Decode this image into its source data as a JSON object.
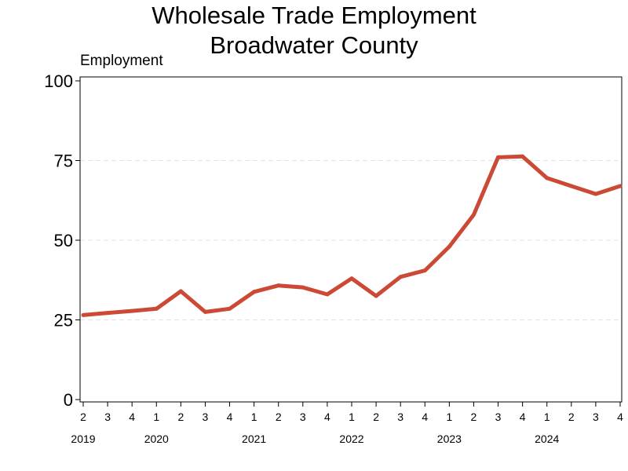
{
  "chart_data": {
    "type": "line",
    "title": "Wholesale Trade Employment",
    "subtitle": "Broadwater County",
    "ylabel": "Employment",
    "xlabel": "",
    "ylim": [
      0,
      100
    ],
    "yticks": [
      "0",
      "25",
      "50",
      "75",
      "100"
    ],
    "grid": "horizontal dashed",
    "series_color": "#cc4a35",
    "x": [
      "2019 Q2",
      "2019 Q3",
      "2019 Q4",
      "2020 Q1",
      "2020 Q2",
      "2020 Q3",
      "2020 Q4",
      "2021 Q1",
      "2021 Q2",
      "2021 Q3",
      "2021 Q4",
      "2022 Q1",
      "2022 Q2",
      "2022 Q3",
      "2022 Q4",
      "2023 Q1",
      "2023 Q2",
      "2023 Q3",
      "2023 Q4",
      "2024 Q1",
      "2024 Q2",
      "2024 Q3",
      "2024 Q4"
    ],
    "quarter_labels": [
      "2",
      "3",
      "4",
      "1",
      "2",
      "3",
      "4",
      "1",
      "2",
      "3",
      "4",
      "1",
      "2",
      "3",
      "4",
      "1",
      "2",
      "3",
      "4",
      "1",
      "2",
      "3",
      "4"
    ],
    "year_labels": [
      {
        "text": "2019",
        "index": 0
      },
      {
        "text": "2020",
        "index": 3
      },
      {
        "text": "2021",
        "index": 7
      },
      {
        "text": "2022",
        "index": 11
      },
      {
        "text": "2023",
        "index": 15
      },
      {
        "text": "2024",
        "index": 19
      }
    ],
    "series": [
      {
        "values": [
          26.5,
          27.2,
          27.8,
          28.5,
          34,
          27.5,
          28.5,
          33.8,
          35.8,
          35.2,
          33,
          38,
          32.5,
          38.5,
          40.5,
          48,
          58,
          76,
          76.3,
          69.5,
          67,
          64.5,
          67
        ]
      }
    ]
  }
}
